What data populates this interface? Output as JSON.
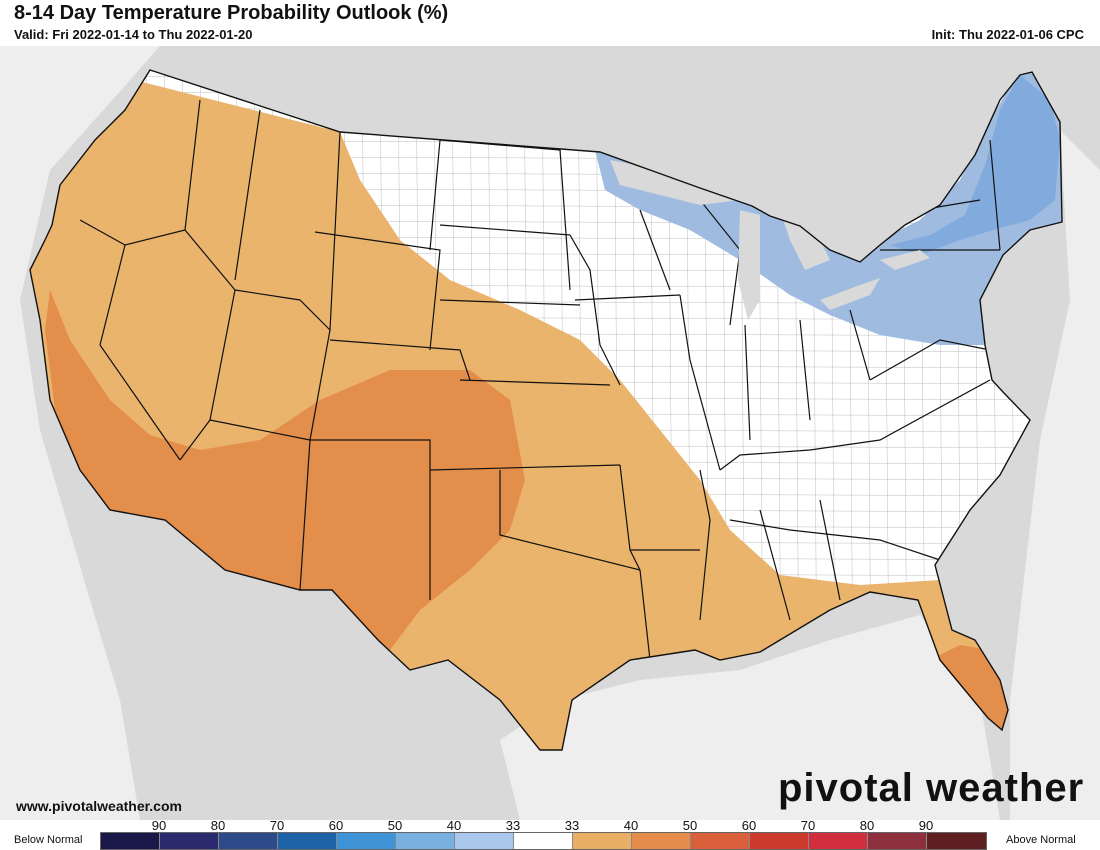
{
  "header": {
    "title": "8-14 Day Temperature Probability Outlook (%)",
    "valid": "Valid: Fri 2022-01-14 to Thu 2022-01-20",
    "init": "Init: Thu 2022-01-06 CPC"
  },
  "map": {
    "colors": {
      "background": "#d9d9d9",
      "land": "#ffffff",
      "above_light": "#e9b065",
      "above_medium": "#e48c4a",
      "below_light": "#9ab8de",
      "below_medium": "#7fa9dc"
    }
  },
  "legend": {
    "below_label": "Below Normal",
    "above_label": "Above Normal",
    "ticks": [
      "90",
      "80",
      "70",
      "60",
      "50",
      "40",
      "33",
      "33",
      "40",
      "50",
      "60",
      "70",
      "80",
      "90"
    ],
    "colors": [
      "#1a1848",
      "#2b2a6e",
      "#2c4b88",
      "#1e62a8",
      "#3d93d6",
      "#78b0e0",
      "#a8c7eb",
      "#ffffff",
      "#e9b065",
      "#e48c4a",
      "#d9603a",
      "#cc3a2e",
      "#d12f3f",
      "#8d2f3c",
      "#5e1e22"
    ]
  },
  "footer": {
    "site_url": "www.pivotalweather.com",
    "brand": "pivotal weather"
  }
}
